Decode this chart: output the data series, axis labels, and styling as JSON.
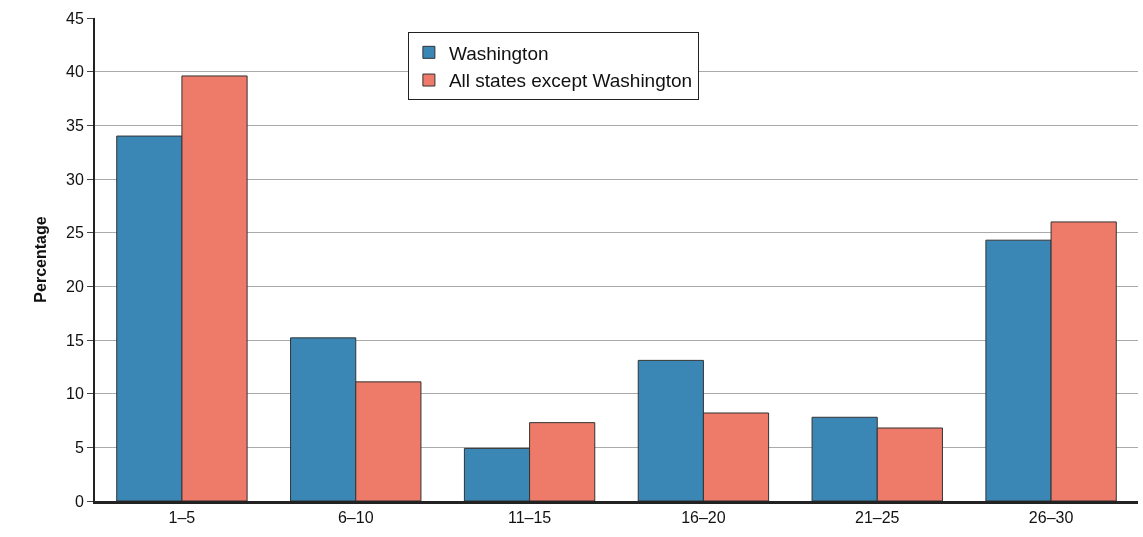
{
  "chart_data": {
    "type": "bar",
    "ylabel": "Percentage",
    "categories": [
      "1–5",
      "6–10",
      "11–15",
      "16–20",
      "21–25",
      "26–30"
    ],
    "series": [
      {
        "name": "Washington",
        "color": "#3a87b5",
        "values": [
          34.0,
          15.2,
          4.9,
          13.1,
          7.8,
          24.3
        ]
      },
      {
        "name": "All states except Washington",
        "color": "#ee7a6a",
        "values": [
          39.6,
          11.1,
          7.3,
          8.2,
          6.8,
          26.0
        ]
      }
    ],
    "ylim": [
      0,
      45
    ],
    "yticks": [
      0,
      5,
      10,
      15,
      20,
      25,
      30,
      35,
      40,
      45
    ],
    "grid": "y",
    "legend": "top"
  }
}
